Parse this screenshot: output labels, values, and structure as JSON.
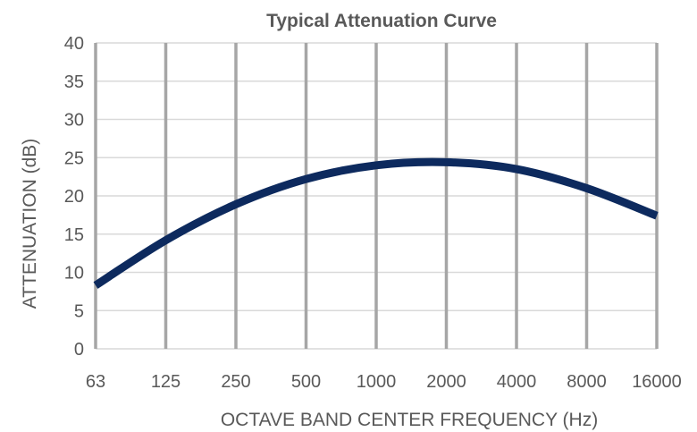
{
  "chart_data": {
    "type": "line",
    "title": "Typical Attenuation Curve",
    "xlabel": "OCTAVE BAND CENTER FREQUENCY (Hz)",
    "ylabel": "ATTENUATION (dB)",
    "categories": [
      "63",
      "125",
      "250",
      "500",
      "1000",
      "2000",
      "4000",
      "8000",
      "16000"
    ],
    "x_scale": "log (octave bands)",
    "ylim": [
      0,
      40
    ],
    "yticks": [
      "0",
      "5",
      "10",
      "15",
      "20",
      "25",
      "30",
      "35",
      "40"
    ],
    "grid": "vertical major lines, horizontal light lines",
    "series": [
      {
        "color": "#0d2a5e",
        "values": [
          8.3,
          14.2,
          18.9,
          22.2,
          24.0,
          24.4,
          23.5,
          21.0,
          17.4
        ]
      }
    ]
  }
}
